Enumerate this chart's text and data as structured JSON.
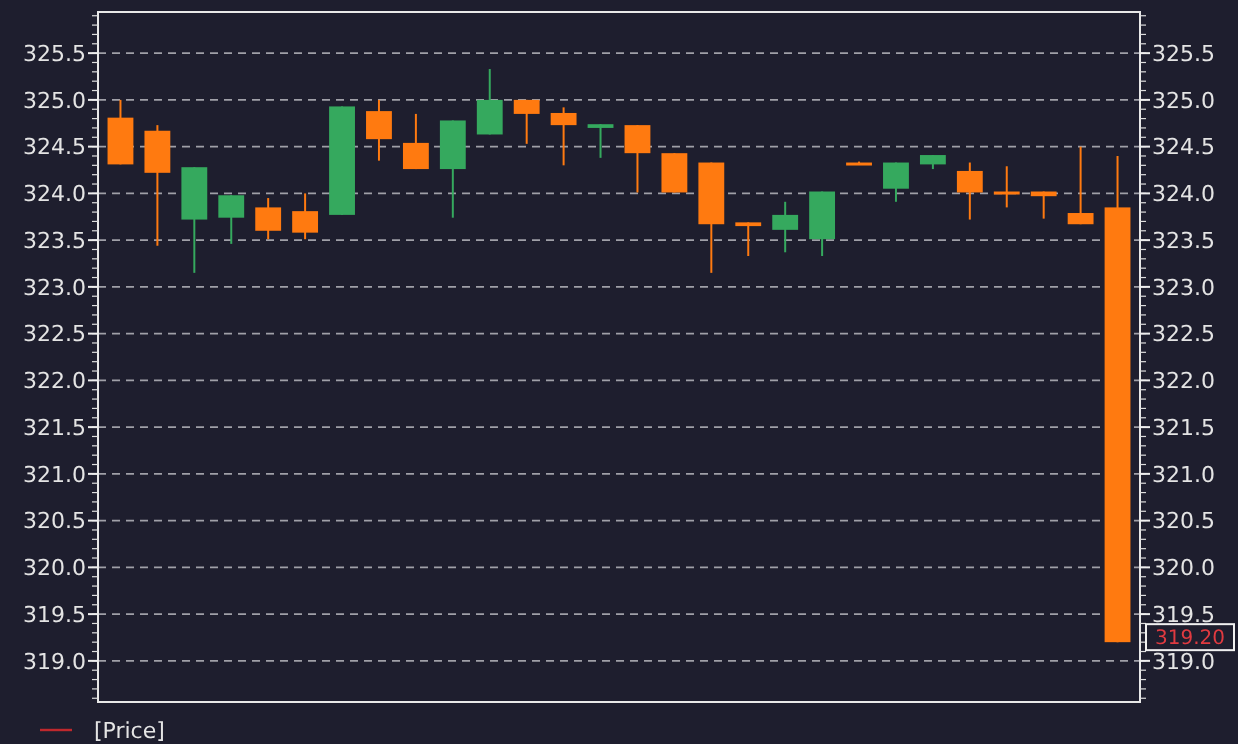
{
  "chart_data": {
    "type": "candlestick",
    "categories": [
      null,
      null,
      null,
      null,
      null,
      null,
      null,
      null,
      null,
      null,
      null,
      null,
      null,
      null,
      null,
      null,
      null,
      null,
      null,
      null,
      null,
      null,
      null,
      null,
      null,
      null,
      null,
      null
    ],
    "series": [
      {
        "name": "[Price]",
        "color": "#c0282d",
        "ohlc": [
          [
            324.81,
            325.0,
            324.31,
            324.31
          ],
          [
            324.67,
            324.73,
            323.44,
            324.22
          ],
          [
            323.72,
            324.28,
            323.15,
            324.28
          ],
          [
            323.74,
            323.98,
            323.46,
            323.98
          ],
          [
            323.85,
            323.95,
            323.51,
            323.6
          ],
          [
            323.81,
            324.0,
            323.51,
            323.58
          ],
          [
            323.77,
            324.93,
            323.77,
            324.93
          ],
          [
            324.88,
            325.0,
            324.35,
            324.58
          ],
          [
            324.54,
            324.85,
            324.26,
            324.26
          ],
          [
            324.26,
            324.78,
            323.74,
            324.78
          ],
          [
            324.63,
            325.33,
            324.63,
            325.0
          ],
          [
            325.0,
            325.0,
            324.53,
            324.85
          ],
          [
            324.86,
            324.92,
            324.3,
            324.73
          ],
          [
            324.7,
            324.74,
            324.38,
            324.74
          ],
          [
            324.73,
            324.73,
            324.01,
            324.43
          ],
          [
            324.43,
            324.43,
            324.01,
            324.01
          ],
          [
            324.33,
            324.33,
            323.15,
            323.67
          ],
          [
            323.69,
            323.69,
            323.33,
            323.65
          ],
          [
            323.61,
            323.91,
            323.37,
            323.77
          ],
          [
            323.51,
            324.02,
            323.33,
            324.02
          ],
          [
            324.33,
            324.34,
            324.31,
            324.32
          ],
          [
            324.05,
            324.33,
            323.91,
            324.33
          ],
          [
            324.31,
            324.41,
            324.26,
            324.41
          ],
          [
            324.24,
            324.33,
            323.72,
            324.01
          ],
          [
            324.02,
            324.29,
            323.85,
            324.01
          ],
          [
            324.02,
            324.02,
            323.73,
            323.97
          ],
          [
            323.79,
            324.5,
            323.67,
            323.67
          ],
          [
            323.85,
            324.4,
            319.2,
            319.2
          ]
        ],
        "colors": [
          "#ff7a10",
          "#ff7a10",
          "#35a95e",
          "#35a95e",
          "#ff7a10",
          "#ff7a10",
          "#35a95e",
          "#ff7a10",
          "#ff7a10",
          "#35a95e",
          "#35a95e",
          "#ff7a10",
          "#ff7a10",
          "#35a95e",
          "#ff7a10",
          "#ff7a10",
          "#ff7a10",
          "#ff7a10",
          "#35a95e",
          "#35a95e",
          "#ff7a10",
          "#35a95e",
          "#35a95e",
          "#ff7a10",
          "#ff7a10",
          "#ff7a10",
          "#ff7a10",
          "#ff7a10"
        ]
      }
    ],
    "ylim": [
      318.56,
      325.94
    ],
    "yticks": [
      {
        "value": 319,
        "label": "319.0"
      },
      {
        "value": 319.5,
        "label": "319.5"
      },
      {
        "value": 320,
        "label": "320.0"
      },
      {
        "value": 320.5,
        "label": "320.5"
      },
      {
        "value": 321,
        "label": "321.0"
      },
      {
        "value": 321.5,
        "label": "321.5"
      },
      {
        "value": 322,
        "label": "322.0"
      },
      {
        "value": 322.5,
        "label": "322.5"
      },
      {
        "value": 323,
        "label": "323.0"
      },
      {
        "value": 323.5,
        "label": "323.5"
      },
      {
        "value": 324,
        "label": "324.0"
      },
      {
        "value": 324.5,
        "label": "324.5"
      },
      {
        "value": 325,
        "label": "325.0"
      },
      {
        "value": 325.5,
        "label": "325.5"
      }
    ],
    "y2lim": [
      318.56,
      325.94
    ],
    "y2ticks": [
      {
        "value": 319,
        "label": "319.0"
      },
      {
        "value": 319.5,
        "label": "319.5"
      },
      {
        "value": 320,
        "label": "320.0"
      },
      {
        "value": 320.5,
        "label": "320.5"
      },
      {
        "value": 321,
        "label": "321.0"
      },
      {
        "value": 321.5,
        "label": "321.5"
      },
      {
        "value": 322,
        "label": "322.0"
      },
      {
        "value": 322.5,
        "label": "322.5"
      },
      {
        "value": 323,
        "label": "323.0"
      },
      {
        "value": 323.5,
        "label": "323.5"
      },
      {
        "value": 324,
        "label": "324.0"
      },
      {
        "value": 324.5,
        "label": "324.5"
      },
      {
        "value": 325,
        "label": "325.0"
      },
      {
        "value": 325.5,
        "label": "325.5"
      }
    ],
    "annotations": [
      "319.20"
    ],
    "grid": "y",
    "legend": "bottom left"
  }
}
